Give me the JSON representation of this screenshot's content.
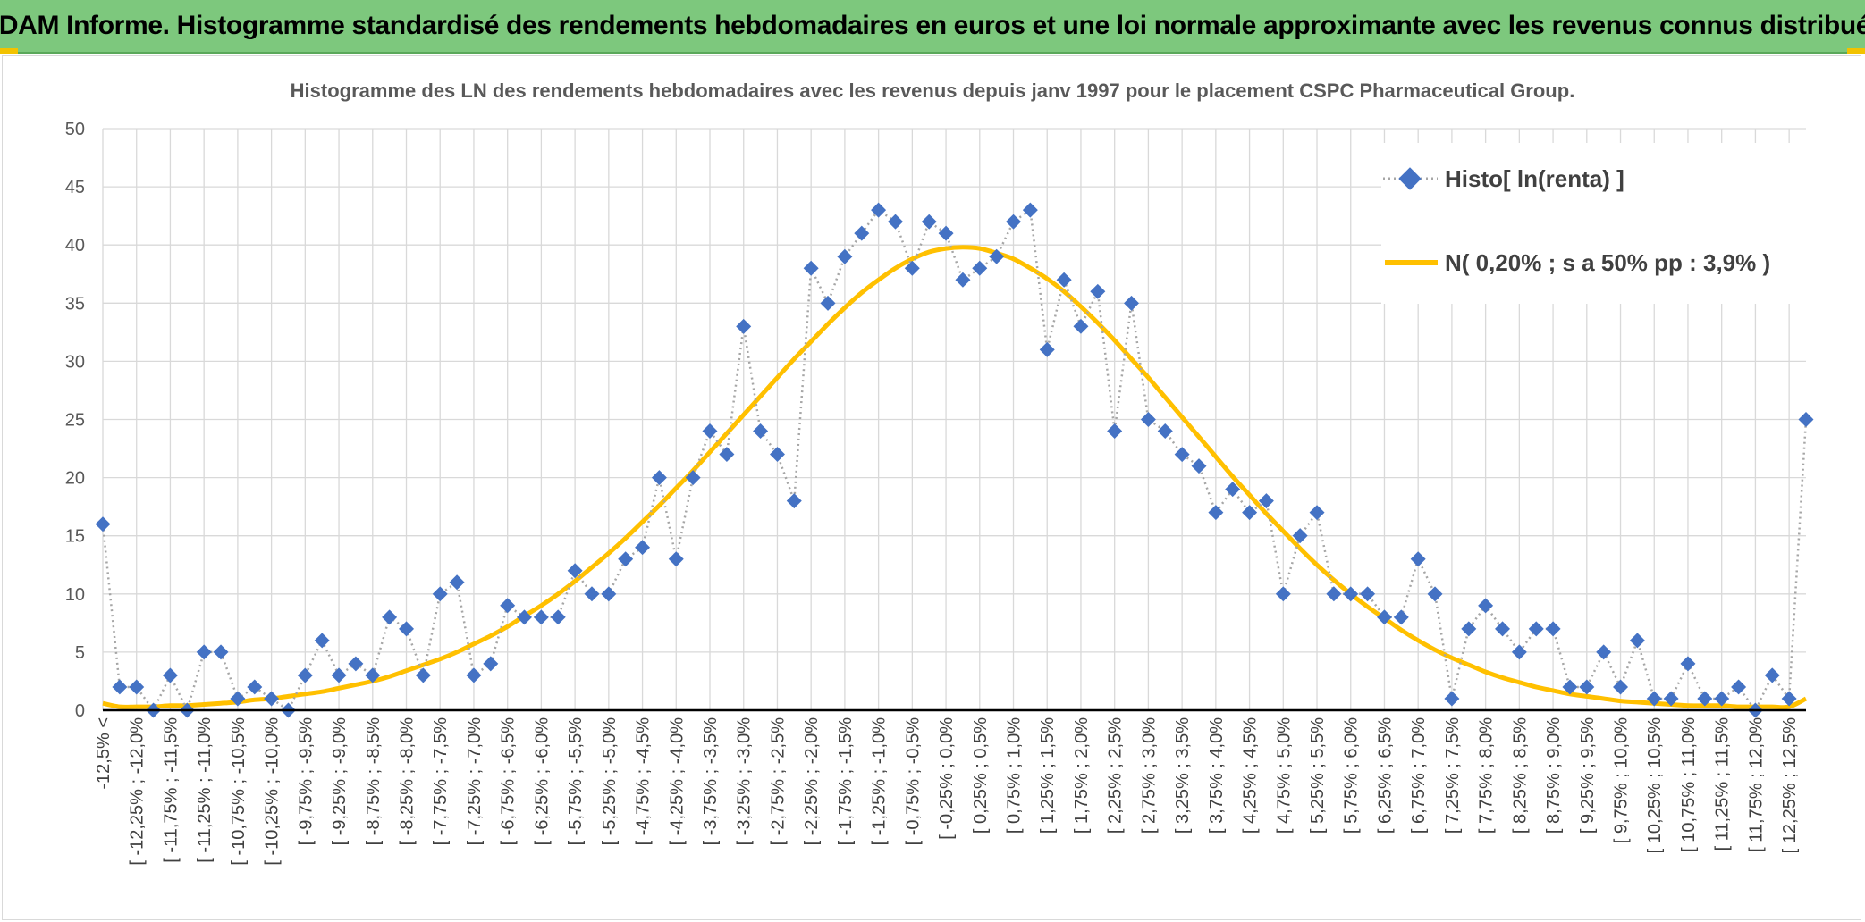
{
  "banner": {
    "title": "ADAM Informe. Histogramme standardisé des rendements hebdomadaires en euros et une loi normale approximante avec les revenus connus distribués"
  },
  "colors": {
    "banner": "#7dc87d",
    "histo_marker": "#4472c4",
    "histo_line": "#a6a6a6",
    "normal_curve": "#ffc000",
    "grid": "#d9d9d9"
  },
  "chart_data": {
    "type": "line",
    "title": "Histogramme des LN des rendements hebdomadaires avec les revenus depuis janv 1997 pour le placement CSPC Pharmaceutical  Group.",
    "xlabel": "",
    "ylabel": "",
    "ylim": [
      0,
      50
    ],
    "yticks": [
      0,
      5,
      10,
      15,
      20,
      25,
      30,
      35,
      40,
      45,
      50
    ],
    "grid": true,
    "legend_position": "top-right",
    "x_tick_labels": [
      "-12,5% <",
      "[ -12,25% ; -12,0%",
      "[ -11,75% ; -11,5%",
      "[ -11,25% ; -11,0%",
      "[ -10,75% ; -10,5%",
      "[ -10,25% ; -10,0%",
      "[ -9,75% ; -9,5%",
      "[ -9,25% ; -9,0%",
      "[ -8,75% ; -8,5%",
      "[ -8,25% ; -8,0%",
      "[ -7,75% ; -7,5%",
      "[ -7,25% ; -7,0%",
      "[ -6,75% ; -6,5%",
      "[ -6,25% ; -6,0%",
      "[ -5,75% ; -5,5%",
      "[ -5,25% ; -5,0%",
      "[ -4,75% ; -4,5%",
      "[ -4,25% ; -4,0%",
      "[ -3,75% ; -3,5%",
      "[ -3,25% ; -3,0%",
      "[ -2,75% ; -2,5%",
      "[ -2,25% ; -2,0%",
      "[ -1,75% ; -1,5%",
      "[ -1,25% ; -1,0%",
      "[ -0,75% ; -0,5%",
      "[ -0,25% ; 0,0%",
      "[ 0,25% ; 0,5%",
      "[ 0,75% ; 1,0%",
      "[ 1,25% ; 1,5%",
      "[ 1,75% ; 2,0%",
      "[ 2,25% ; 2,5%",
      "[ 2,75% ; 3,0%",
      "[ 3,25% ; 3,5%",
      "[ 3,75% ; 4,0%",
      "[ 4,25% ; 4,5%",
      "[ 4,75% ; 5,0%",
      "[ 5,25% ; 5,5%",
      "[ 5,75% ; 6,0%",
      "[ 6,25% ; 6,5%",
      "[ 6,75% ; 7,0%",
      "[ 7,25% ; 7,5%",
      "[ 7,75% ; 8,0%",
      "[ 8,25% ; 8,5%",
      "[ 8,75% ; 9,0%",
      "[ 9,25% ; 9,5%",
      "[ 9,75% ; 10,0%",
      "[ 10,25% ; 10,5%",
      "[ 10,75% ; 11,0%",
      "[ 11,25% ; 11,5%",
      "[ 11,75% ; 12,0%",
      "[ 12,25% ; 12,5%"
    ],
    "series": [
      {
        "name": "Histo[ ln(renta) ]",
        "values": [
          16,
          2,
          2,
          0,
          3,
          0,
          5,
          5,
          1,
          2,
          1,
          0,
          3,
          6,
          3,
          4,
          3,
          8,
          7,
          3,
          10,
          11,
          3,
          4,
          9,
          8,
          8,
          8,
          12,
          10,
          10,
          13,
          14,
          20,
          13,
          20,
          24,
          22,
          33,
          24,
          22,
          18,
          38,
          35,
          39,
          41,
          43,
          42,
          38,
          42,
          41,
          37,
          38,
          39,
          42,
          43,
          31,
          37,
          33,
          36,
          24,
          35,
          25,
          24,
          22,
          21,
          17,
          19,
          17,
          18,
          10,
          15,
          17,
          10,
          10,
          10,
          8,
          8,
          13,
          10,
          1,
          7,
          9,
          7,
          5,
          7,
          7,
          2,
          2,
          5,
          2,
          6,
          1,
          1,
          4,
          1,
          1,
          2,
          0,
          3,
          1,
          25
        ]
      },
      {
        "name": "N( 0,20% ; s a 50% pp : 3,9% )",
        "values": [
          0.6,
          0.3,
          0.3,
          0.3,
          0.4,
          0.4,
          0.5,
          0.6,
          0.7,
          0.9,
          1.0,
          1.2,
          1.4,
          1.6,
          1.9,
          2.2,
          2.5,
          2.9,
          3.4,
          3.9,
          4.4,
          5.0,
          5.7,
          6.4,
          7.2,
          8.1,
          9.0,
          10.0,
          11.1,
          12.3,
          13.5,
          14.8,
          16.2,
          17.6,
          19.1,
          20.6,
          22.2,
          23.8,
          25.4,
          27.0,
          28.6,
          30.2,
          31.7,
          33.2,
          34.6,
          35.9,
          37.0,
          38.0,
          38.8,
          39.4,
          39.7,
          39.8,
          39.7,
          39.3,
          38.8,
          38.0,
          37.1,
          36.0,
          34.7,
          33.3,
          31.8,
          30.2,
          28.6,
          26.9,
          25.2,
          23.5,
          21.8,
          20.1,
          18.5,
          16.9,
          15.4,
          13.9,
          12.5,
          11.2,
          10.0,
          8.9,
          7.9,
          6.9,
          6.0,
          5.2,
          4.5,
          3.9,
          3.3,
          2.8,
          2.4,
          2.0,
          1.7,
          1.4,
          1.2,
          1.0,
          0.8,
          0.7,
          0.6,
          0.5,
          0.4,
          0.4,
          0.4,
          0.3,
          0.3,
          0.3,
          0.3,
          1.0
        ]
      }
    ]
  }
}
